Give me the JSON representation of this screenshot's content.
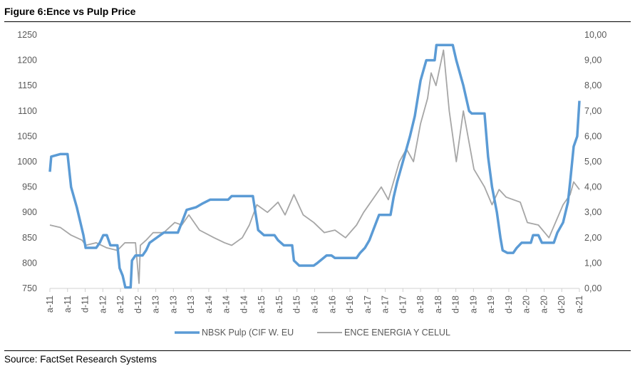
{
  "figure_title": "Figure 6:Ence vs Pulp Price",
  "source": "Source: FactSet Research Systems",
  "chart_data": {
    "type": "line",
    "title": "Ence vs Pulp Price",
    "x_unit": "months since Apr-2011",
    "xlim": [
      0,
      120
    ],
    "x_tick_labels": [
      "a-11",
      "a-11",
      "d-11",
      "a-12",
      "a-12",
      "d-12",
      "a-13",
      "a-13",
      "d-13",
      "a-14",
      "a-14",
      "d-14",
      "a-15",
      "a-15",
      "d-15",
      "a-16",
      "a-16",
      "d-16",
      "a-17",
      "a-17",
      "d-17",
      "a-18",
      "a-18",
      "d-18",
      "a-19",
      "a-19",
      "d-19",
      "a-20",
      "a-20",
      "d-20",
      "a-21"
    ],
    "y_left": {
      "range": [
        750,
        1250
      ],
      "ticks": [
        "750",
        "800",
        "850",
        "900",
        "950",
        "1000",
        "1050",
        "1100",
        "1150",
        "1200",
        "1250"
      ]
    },
    "y_right": {
      "range": [
        0,
        10
      ],
      "ticks": [
        "0,00",
        "1,00",
        "2,00",
        "3,00",
        "4,00",
        "5,00",
        "6,00",
        "7,00",
        "8,00",
        "9,00",
        "10,00"
      ]
    },
    "legend_position": "bottom",
    "series": [
      {
        "name": "NBSK Pulp (CIF W. EU",
        "axis": "left",
        "color": "#5B9BD5",
        "points": [
          [
            0,
            980
          ],
          [
            0.3,
            1010
          ],
          [
            2.4,
            1015
          ],
          [
            4,
            1015
          ],
          [
            4.8,
            950
          ],
          [
            6.1,
            910
          ],
          [
            7.6,
            855
          ],
          [
            8.1,
            830
          ],
          [
            10.5,
            830
          ],
          [
            11.3,
            840
          ],
          [
            12.1,
            855
          ],
          [
            12.9,
            855
          ],
          [
            13.7,
            835
          ],
          [
            15.3,
            835
          ],
          [
            15.8,
            790
          ],
          [
            16.5,
            775
          ],
          [
            17.1,
            752
          ],
          [
            18.3,
            752
          ],
          [
            18.6,
            805
          ],
          [
            19.4,
            815
          ],
          [
            21,
            815
          ],
          [
            21.8,
            825
          ],
          [
            22.6,
            840
          ],
          [
            23.4,
            845
          ],
          [
            25.8,
            860
          ],
          [
            29,
            860
          ],
          [
            29.9,
            880
          ],
          [
            31,
            905
          ],
          [
            33.1,
            910
          ],
          [
            34.7,
            918
          ],
          [
            36.3,
            925
          ],
          [
            40.4,
            925
          ],
          [
            41.2,
            932
          ],
          [
            46,
            932
          ],
          [
            47.2,
            865
          ],
          [
            48.5,
            855
          ],
          [
            50.9,
            855
          ],
          [
            51.7,
            845
          ],
          [
            53,
            835
          ],
          [
            54.9,
            835
          ],
          [
            55.3,
            805
          ],
          [
            56.5,
            795
          ],
          [
            59.8,
            795
          ],
          [
            60.6,
            800
          ],
          [
            62.7,
            815
          ],
          [
            63.8,
            815
          ],
          [
            64.6,
            810
          ],
          [
            69.5,
            810
          ],
          [
            70.3,
            820
          ],
          [
            71.4,
            830
          ],
          [
            72.4,
            845
          ],
          [
            73.5,
            870
          ],
          [
            74.6,
            895
          ],
          [
            77.2,
            895
          ],
          [
            77.9,
            930
          ],
          [
            78.7,
            960
          ],
          [
            80,
            1000
          ],
          [
            81.6,
            1050
          ],
          [
            82.7,
            1090
          ],
          [
            84,
            1160
          ],
          [
            85.3,
            1200
          ],
          [
            87.2,
            1200
          ],
          [
            87.6,
            1230
          ],
          [
            91.3,
            1230
          ],
          [
            92.1,
            1200
          ],
          [
            93.7,
            1150
          ],
          [
            95,
            1100
          ],
          [
            95.6,
            1095
          ],
          [
            98.5,
            1095
          ],
          [
            99.3,
            1010
          ],
          [
            100.2,
            950
          ],
          [
            101.3,
            900
          ],
          [
            102.1,
            850
          ],
          [
            102.6,
            825
          ],
          [
            103.7,
            820
          ],
          [
            105,
            820
          ],
          [
            105.8,
            830
          ],
          [
            106.9,
            840
          ],
          [
            109,
            840
          ],
          [
            109.5,
            855
          ],
          [
            110.7,
            855
          ],
          [
            111.5,
            840
          ],
          [
            114.2,
            840
          ],
          [
            115,
            860
          ],
          [
            116.3,
            880
          ],
          [
            117.4,
            920
          ],
          [
            117.9,
            960
          ],
          [
            118.7,
            1030
          ],
          [
            119.5,
            1050
          ],
          [
            120,
            1120
          ]
        ]
      },
      {
        "name": "ENCE ENERGIA Y CELUL",
        "axis": "right",
        "color": "#A6A6A6",
        "points": [
          [
            0,
            2.5
          ],
          [
            2.4,
            2.4
          ],
          [
            4.8,
            2.1
          ],
          [
            7.3,
            1.9
          ],
          [
            8.1,
            1.7
          ],
          [
            10.5,
            1.8
          ],
          [
            12.9,
            1.6
          ],
          [
            15.3,
            1.5
          ],
          [
            17,
            1.8
          ],
          [
            19.4,
            1.8
          ],
          [
            20.2,
            0.2
          ],
          [
            20.5,
            1.7
          ],
          [
            21.8,
            1.9
          ],
          [
            23.4,
            2.2
          ],
          [
            25.8,
            2.2
          ],
          [
            28.3,
            2.6
          ],
          [
            29.9,
            2.5
          ],
          [
            31.5,
            2.9
          ],
          [
            33.9,
            2.3
          ],
          [
            37.2,
            2.0
          ],
          [
            39.6,
            1.8
          ],
          [
            41.2,
            1.7
          ],
          [
            43.6,
            2.0
          ],
          [
            45.2,
            2.5
          ],
          [
            46.9,
            3.3
          ],
          [
            49.3,
            3.0
          ],
          [
            51.7,
            3.4
          ],
          [
            53.3,
            2.9
          ],
          [
            55.3,
            3.7
          ],
          [
            57.4,
            2.9
          ],
          [
            59.8,
            2.6
          ],
          [
            62.2,
            2.2
          ],
          [
            64.6,
            2.3
          ],
          [
            67,
            2.0
          ],
          [
            69.5,
            2.5
          ],
          [
            71.1,
            3.0
          ],
          [
            73.5,
            3.6
          ],
          [
            75.1,
            4.0
          ],
          [
            76.7,
            3.5
          ],
          [
            79.2,
            5.0
          ],
          [
            80.8,
            5.5
          ],
          [
            82.4,
            5.0
          ],
          [
            84,
            6.5
          ],
          [
            85.6,
            7.5
          ],
          [
            86.4,
            8.5
          ],
          [
            87.5,
            8.0
          ],
          [
            89.2,
            9.4
          ],
          [
            90.5,
            7.0
          ],
          [
            92.1,
            5.0
          ],
          [
            93.7,
            7.0
          ],
          [
            96.1,
            4.7
          ],
          [
            98.5,
            4.0
          ],
          [
            100.2,
            3.3
          ],
          [
            101.8,
            3.9
          ],
          [
            103.4,
            3.6
          ],
          [
            106.6,
            3.4
          ],
          [
            108.2,
            2.6
          ],
          [
            110.7,
            2.5
          ],
          [
            113.1,
            2.0
          ],
          [
            116.3,
            3.3
          ],
          [
            117.9,
            3.7
          ],
          [
            118.7,
            4.2
          ],
          [
            120,
            3.9
          ]
        ]
      }
    ]
  }
}
